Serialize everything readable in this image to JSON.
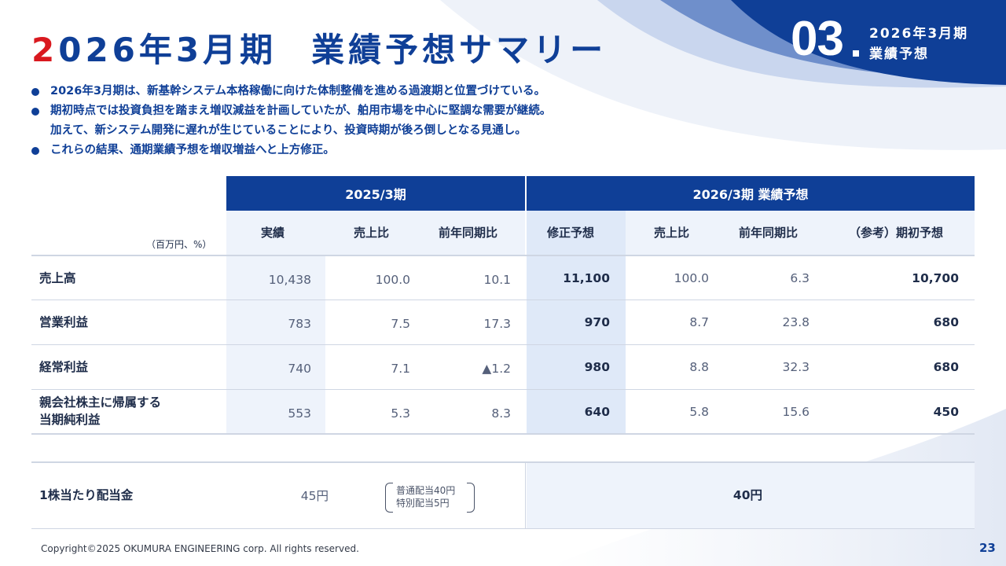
{
  "title": {
    "accent": "2",
    "part1": "026年3月期",
    "part2": "業績予想サマリー"
  },
  "section": {
    "number": "03",
    "line1": "2026年3月期",
    "line2": "業績予想"
  },
  "bullets": [
    {
      "lines": [
        "2026年3月期は、新基幹システム本格稼働に向けた体制整備を進める過渡期と位置づけている。"
      ]
    },
    {
      "lines": [
        "期初時点では投資負担を踏まえ増収減益を計画していたが、舶用市場を中心に堅調な需要が継続。",
        "加えて、新システム開発に遅れが生じていることにより、投資時期が後ろ倒しとなる見通し。"
      ]
    },
    {
      "lines": [
        "これらの結果、通期業績予想を増収増益へと上方修正。"
      ]
    }
  ],
  "table": {
    "group_headers": {
      "prev": "2025/3期",
      "curr": "2026/3期 業績予想"
    },
    "unit": "（百万円、%）",
    "columns": [
      "実績",
      "売上比",
      "前年同期比",
      "修正予想",
      "売上比",
      "前年同期比",
      "（参考）期初予想"
    ],
    "rows": [
      {
        "label": "売上高",
        "values": [
          "10,438",
          "100.0",
          "10.1",
          "11,100",
          "100.0",
          "6.3",
          "10,700"
        ]
      },
      {
        "label": "営業利益",
        "values": [
          "783",
          "7.5",
          "17.3",
          "970",
          "8.7",
          "23.8",
          "680"
        ]
      },
      {
        "label": "経常利益",
        "values": [
          "740",
          "7.1",
          "▲1.2",
          "980",
          "8.8",
          "32.3",
          "680"
        ]
      },
      {
        "label_line1": "親会社株主に帰属する",
        "label_line2": "当期純利益",
        "values": [
          "553",
          "5.3",
          "8.3",
          "640",
          "5.8",
          "15.6",
          "450"
        ]
      }
    ],
    "dividend": {
      "label": "1株当たり配当金",
      "prev": "45円",
      "note_line1": "普通配当40円",
      "note_line2": "特別配当5円",
      "curr": "40円"
    }
  },
  "footer": {
    "copyright": "Copyright©2025 OKUMURA ENGINEERING corp. All rights reserved.",
    "page": "23"
  }
}
